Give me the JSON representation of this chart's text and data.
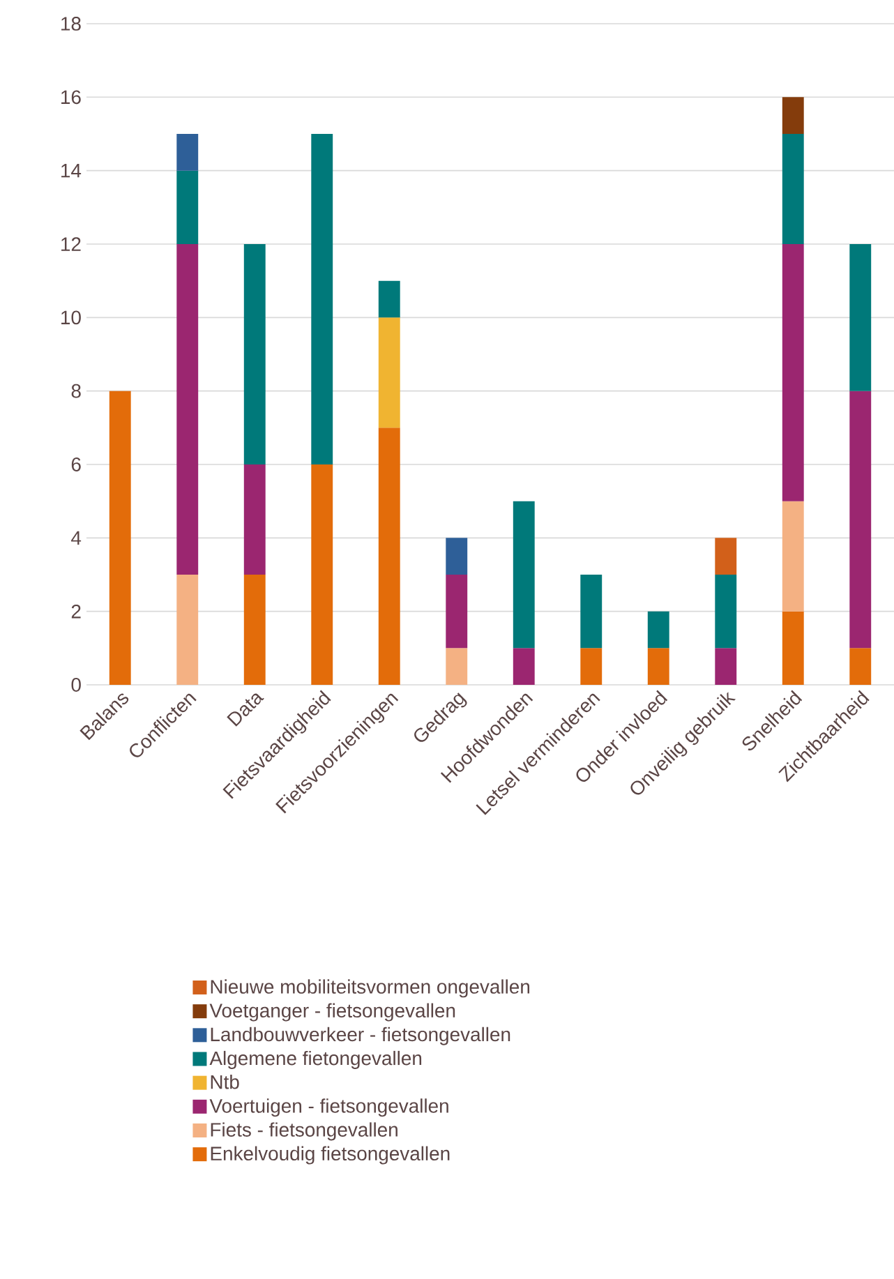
{
  "chart_data": {
    "type": "bar",
    "stacked": true,
    "categories": [
      "Balans",
      "Conflicten",
      "Data",
      "Fietsvaardigheid",
      "Fietsvoorzieningen",
      "Gedrag",
      "Hoofdwonden",
      "Letsel verminderen",
      "Onder invloed",
      "Onveilig gebruik",
      "Snelheid",
      "Zichtbaarheid"
    ],
    "series": [
      {
        "name": "Enkelvoudig fietsongevallen",
        "color": "#e36c0a",
        "values": [
          8,
          null,
          3,
          6,
          7,
          null,
          null,
          1,
          1,
          null,
          2,
          1
        ]
      },
      {
        "name": "Fiets - fietsongevallen",
        "color": "#f4b183",
        "values": [
          null,
          3,
          null,
          null,
          null,
          1,
          null,
          null,
          null,
          null,
          3,
          null
        ]
      },
      {
        "name": "Voertuigen - fietsongevallen",
        "color": "#9b2670",
        "values": [
          null,
          9,
          3,
          null,
          null,
          2,
          1,
          null,
          null,
          1,
          7,
          7
        ]
      },
      {
        "name": "Ntb",
        "color": "#f0b431",
        "values": [
          null,
          null,
          null,
          null,
          3,
          null,
          null,
          null,
          null,
          null,
          null,
          null
        ]
      },
      {
        "name": "Algemene fietongevallen",
        "color": "#00797a",
        "values": [
          null,
          2,
          6,
          9,
          1,
          null,
          4,
          2,
          1,
          2,
          3,
          4
        ]
      },
      {
        "name": "Landbouwverkeer - fietsongevallen",
        "color": "#2e5f98",
        "values": [
          null,
          1,
          null,
          null,
          null,
          1,
          null,
          null,
          null,
          null,
          null,
          null
        ]
      },
      {
        "name": "Voetganger - fietsongevallen",
        "color": "#843c0c",
        "values": [
          null,
          null,
          null,
          null,
          null,
          null,
          null,
          null,
          null,
          null,
          1,
          null
        ]
      },
      {
        "name": "Nieuwe mobiliteitsvormen ongevallen",
        "color": "#d2601a",
        "values": [
          null,
          null,
          null,
          null,
          null,
          null,
          null,
          null,
          null,
          1,
          null,
          null
        ]
      }
    ],
    "ylim": [
      0,
      18
    ],
    "yticks": [
      0,
      2,
      4,
      6,
      8,
      10,
      12,
      14,
      16,
      18
    ],
    "grid": "y",
    "legend": "bottom"
  }
}
